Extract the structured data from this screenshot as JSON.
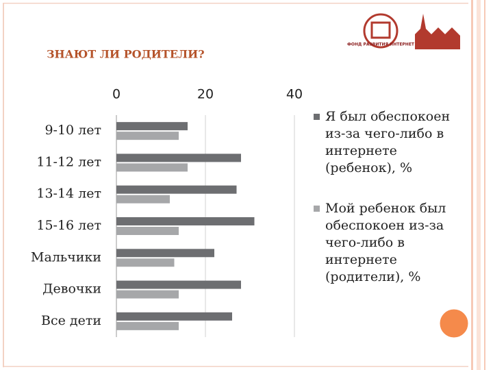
{
  "chart_data": {
    "type": "bar",
    "orientation": "horizontal",
    "title": "ЗНАЮТ ЛИ РОДИТЕЛИ?",
    "categories": [
      "9-10 лет",
      "11-12 лет",
      "13-14 лет",
      "15-16 лет",
      "Мальчики",
      "Девочки",
      "Все дети"
    ],
    "series": [
      {
        "name": "Я был обеспокоен из-за чего-либо в интернете (ребенок), %",
        "color": "#6d6e71",
        "values": [
          16,
          28,
          27,
          31,
          22,
          28,
          26
        ]
      },
      {
        "name": "Мой ребенок был обеспокоен из-за чего-либо в интернете (родители), %",
        "color": "#a6a7a9",
        "values": [
          14,
          16,
          12,
          14,
          13,
          14,
          14
        ]
      }
    ],
    "xlim": [
      0,
      40
    ],
    "xticks": [
      0,
      20,
      40
    ],
    "grid": true,
    "legend": "right"
  },
  "logo": {
    "text": "ФОНД РАЗВИТИЯ ИНТЕРНЕТ"
  }
}
